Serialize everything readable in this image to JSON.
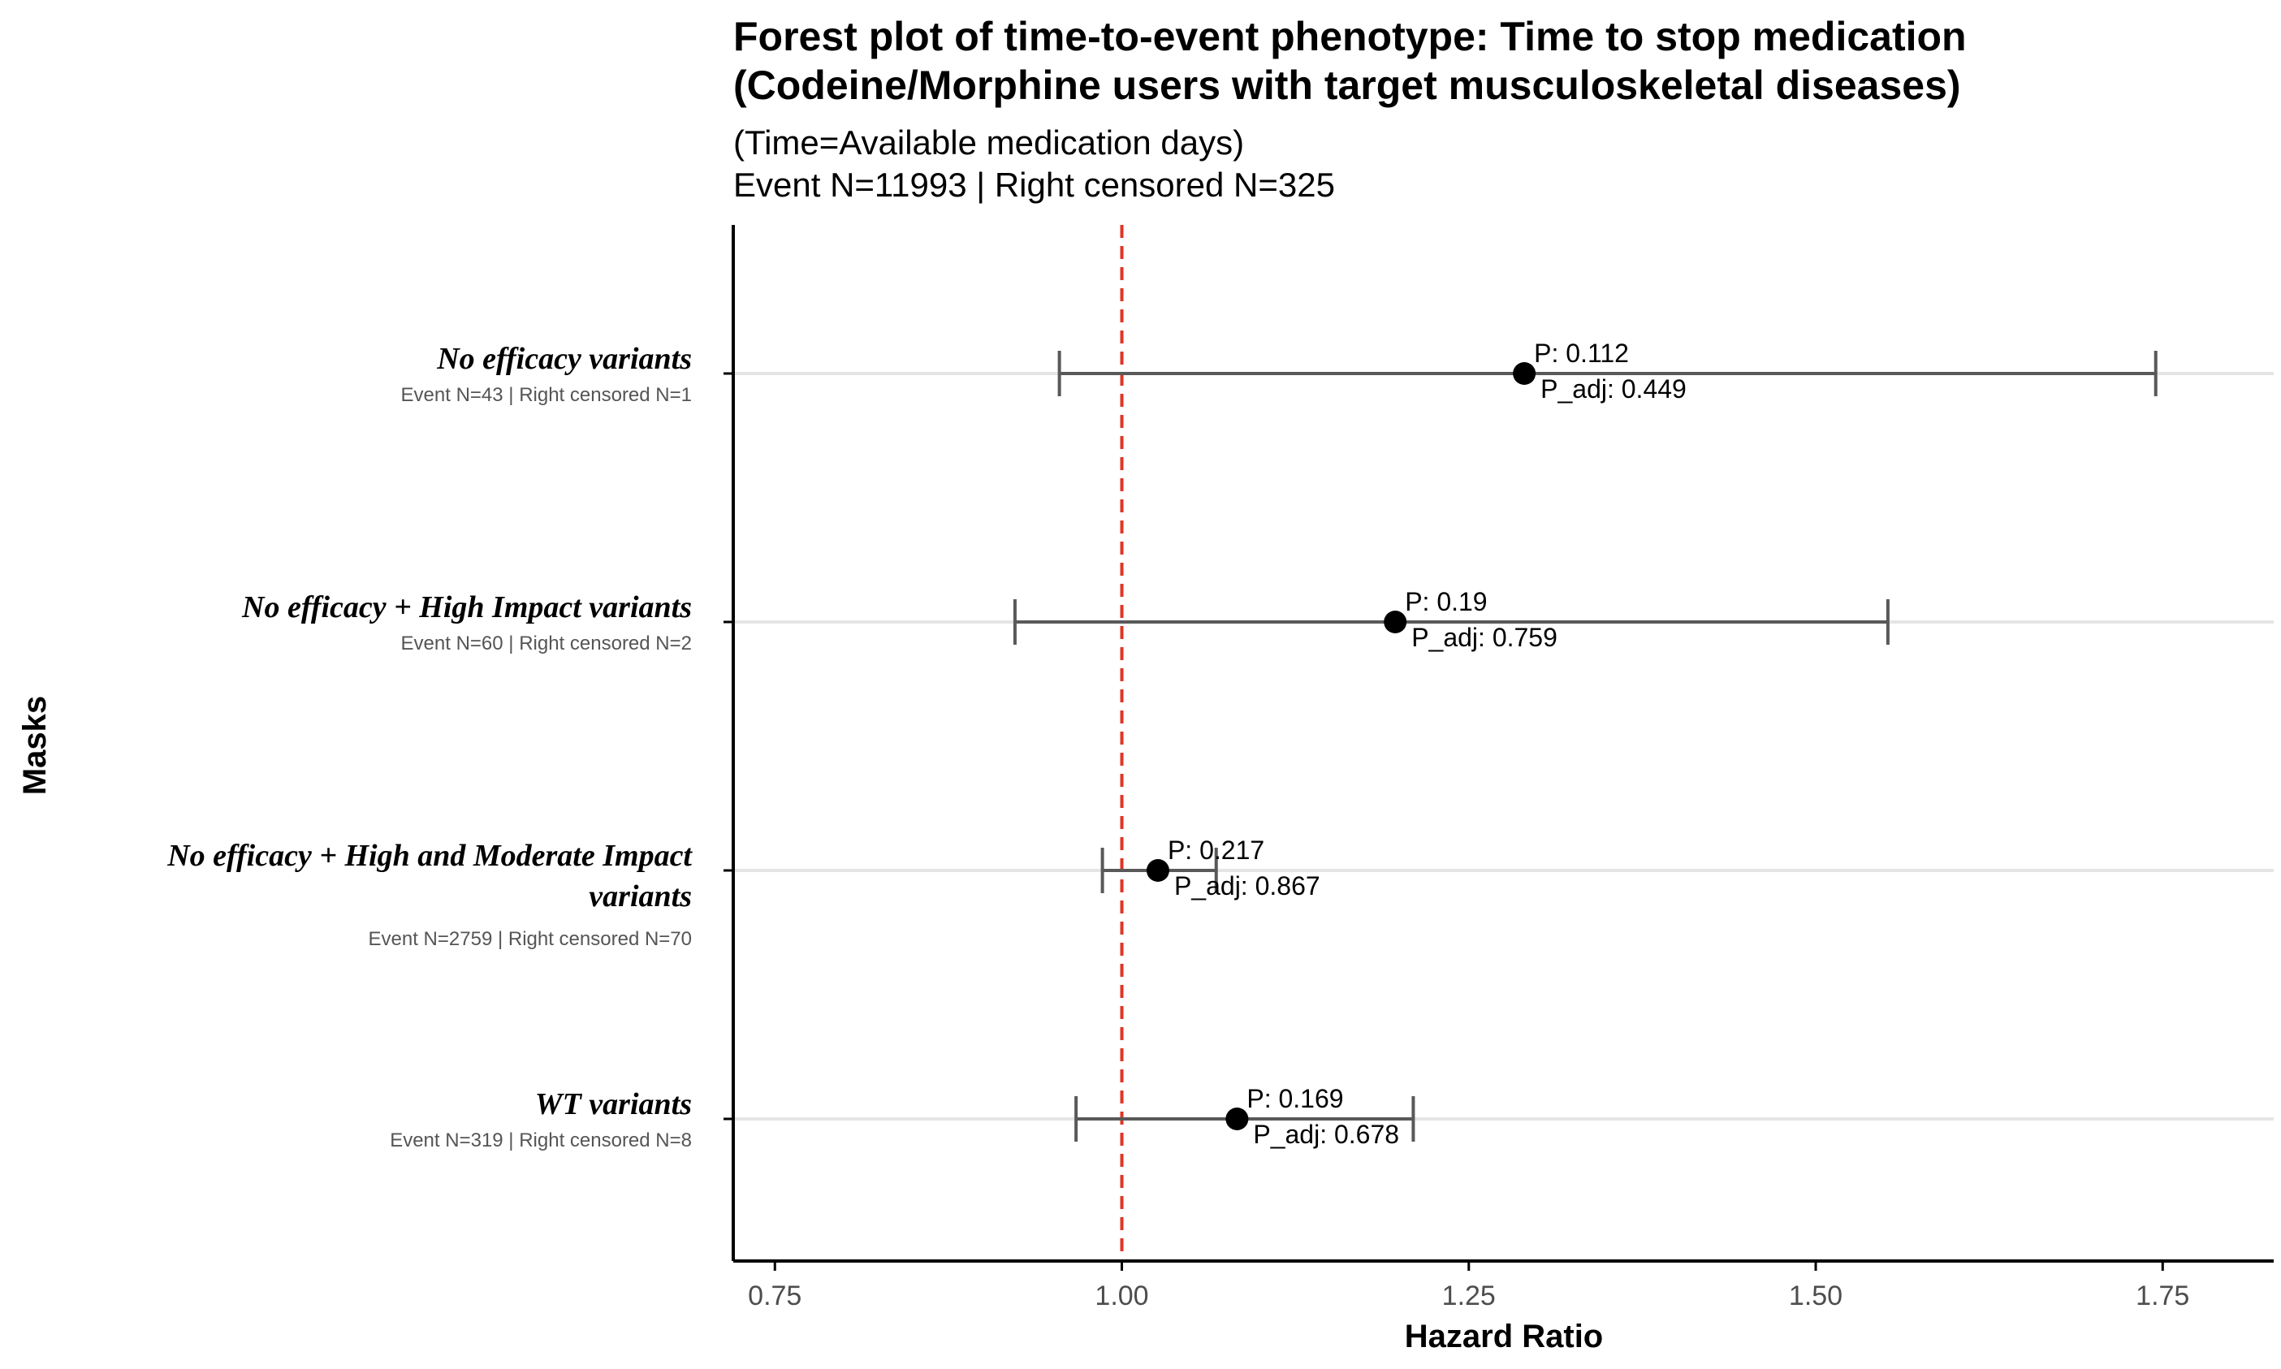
{
  "chart_data": {
    "type": "forest",
    "title_lines": [
      "Forest plot of time-to-event phenotype: Time to stop medication",
      "(Codeine/Morphine users with target musculoskeletal diseases)"
    ],
    "subtitle_lines": [
      "(Time=Available medication days)",
      "Event N=11993 | Right censored N=325"
    ],
    "xlabel": "Hazard Ratio",
    "ylabel": "Masks",
    "xlim": [
      0.72,
      1.83
    ],
    "xticks": [
      0.75,
      1.0,
      1.25,
      1.5,
      1.75
    ],
    "xtick_labels": [
      "0.75",
      "1.00",
      "1.25",
      "1.50",
      "1.75"
    ],
    "reference_line": 1.0,
    "colors": {
      "reference_line": "#e03524",
      "errorbar": "#595959",
      "point": "#000000",
      "row_gridline": "#e5e5e5",
      "axis": "#000000"
    },
    "rows": [
      {
        "label_lines": [
          "No efficacy variants"
        ],
        "sublabel": "Event N=43 | Right censored N=1",
        "hr": 1.29,
        "ci_low": 0.955,
        "ci_high": 1.745,
        "p": "P: 0.112",
        "p_adj": "P_adj: 0.449"
      },
      {
        "label_lines": [
          "No efficacy + High Impact variants"
        ],
        "sublabel": "Event N=60 | Right censored N=2",
        "hr": 1.197,
        "ci_low": 0.923,
        "ci_high": 1.552,
        "p": "P: 0.19",
        "p_adj": "P_adj: 0.759"
      },
      {
        "label_lines": [
          "No efficacy + High and Moderate Impact",
          "variants"
        ],
        "sublabel": "Event N=2759 | Right censored N=70",
        "hr": 1.026,
        "ci_low": 0.986,
        "ci_high": 1.068,
        "p": "P: 0.217",
        "p_adj": "P_adj: 0.867"
      },
      {
        "label_lines": [
          "WT variants"
        ],
        "sublabel": "Event N=319 | Right censored N=8",
        "hr": 1.083,
        "ci_low": 0.967,
        "ci_high": 1.21,
        "p": "P: 0.169",
        "p_adj": "P_adj: 0.678"
      }
    ]
  }
}
